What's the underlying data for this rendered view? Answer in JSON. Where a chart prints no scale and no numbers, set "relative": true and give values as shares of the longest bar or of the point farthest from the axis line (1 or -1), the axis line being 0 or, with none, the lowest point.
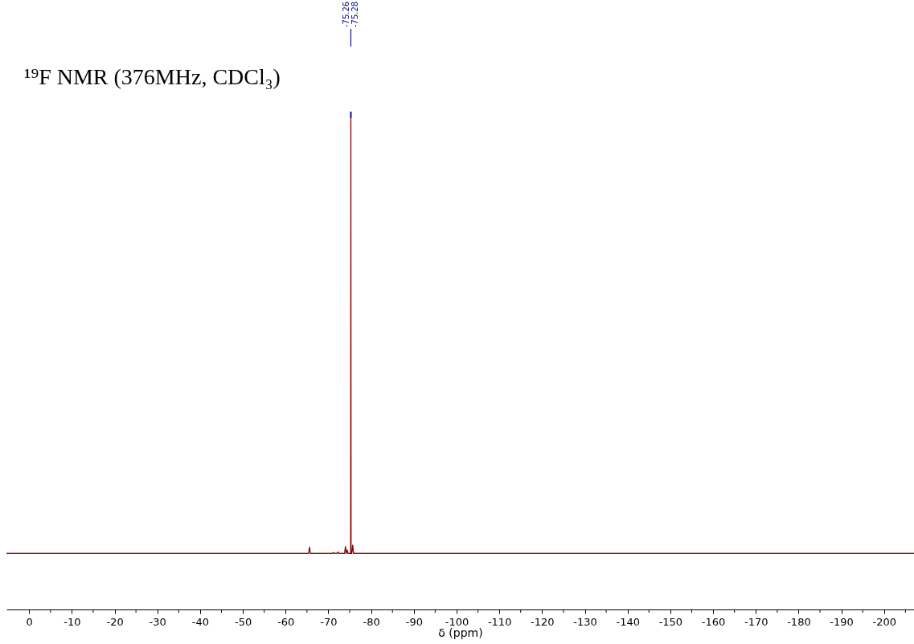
{
  "chart_data": {
    "type": "line",
    "title": "¹⁹F NMR (376MHz, CDCl₃)",
    "xlabel": "δ (ppm)",
    "relative": true,
    "xlim": [
      5.3,
      -207
    ],
    "xticks": [
      0,
      {
        "value": -5,
        "label": null
      },
      -10,
      {
        "value": -15,
        "label": null
      },
      -20,
      {
        "value": -25,
        "label": null
      },
      -30,
      {
        "value": -35,
        "label": null
      },
      -40,
      {
        "value": -45,
        "label": null
      },
      -50,
      {
        "value": -55,
        "label": null
      },
      -60,
      {
        "value": -65,
        "label": null
      },
      -70,
      {
        "value": -75,
        "label": null
      },
      -80,
      {
        "value": -85,
        "label": null
      },
      -90,
      {
        "value": -95,
        "label": null
      },
      -100,
      {
        "value": -105,
        "label": null
      },
      -110,
      {
        "value": -115,
        "label": null
      },
      -120,
      {
        "value": -125,
        "label": null
      },
      -130,
      {
        "value": -135,
        "label": null
      },
      -140,
      {
        "value": -145,
        "label": null
      },
      -150,
      {
        "value": -155,
        "label": null
      },
      -160,
      {
        "value": -165,
        "label": null
      },
      -170,
      {
        "value": -175,
        "label": null
      },
      -180,
      {
        "value": -185,
        "label": null
      },
      -190,
      {
        "value": -195,
        "label": null
      },
      -200,
      {
        "value": -205,
        "label": null
      }
    ],
    "series": [
      {
        "color": "#8b0000",
        "x": [
          5.3,
          -65.4,
          -65.6,
          -65.8,
          -71.0,
          -71.2,
          -71.4,
          -72.0,
          -72.2,
          -72.4,
          -73.8,
          -74.0,
          -74.2,
          -74.4,
          -74.6,
          -75.22,
          -75.27,
          -75.32,
          -75.5,
          -75.7,
          -75.9,
          -207
        ],
        "values": [
          0.114,
          0.114,
          0.127,
          0.114,
          0.114,
          0.116,
          0.114,
          0.114,
          0.117,
          0.114,
          0.114,
          0.128,
          0.114,
          0.121,
          0.114,
          0.114,
          1,
          0.114,
          0.114,
          0.131,
          0.114,
          0.114
        ]
      }
    ],
    "annotations": [
      {
        "text": "-75.26",
        "x": -75.26
      },
      {
        "text": "-75.28",
        "x": -75.28
      }
    ],
    "grid": false
  }
}
